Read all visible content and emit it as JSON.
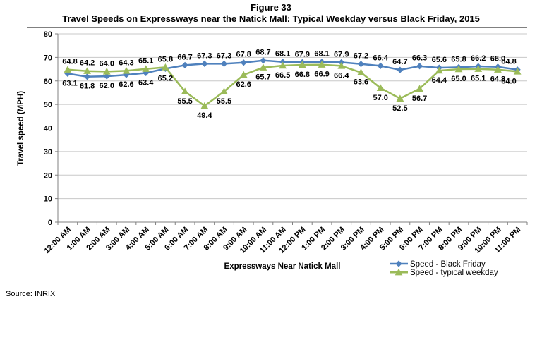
{
  "figure": {
    "title_line1": "Figure 33",
    "title_line2": "Travel Speeds on Expressways near the Natick Mall: Typical Weekday versus Black Friday, 2015",
    "source": "Source: INRIX"
  },
  "chart_data": {
    "type": "line",
    "title": "Travel Speeds on Expressways near the Natick Mall: Typical Weekday versus Black Friday, 2015",
    "xlabel": "Expressways Near Natick Mall",
    "ylabel": "Travel speed (MPH)",
    "ylim": [
      0,
      80
    ],
    "ytick_step": 10,
    "grid": true,
    "legend_position": "bottom-right",
    "data_labels": true,
    "label_decimals": 1,
    "categories": [
      "12:00 AM",
      "1:00 AM",
      "2:00 AM",
      "3:00 AM",
      "4:00 AM",
      "5:00 AM",
      "6:00 AM",
      "7:00 AM",
      "8:00 AM",
      "9:00 AM",
      "10:00 AM",
      "11:00 AM",
      "12:00 PM",
      "1:00 PM",
      "2:00 PM",
      "3:00 PM",
      "4:00 PM",
      "5:00 PM",
      "6:00 PM",
      "7:00 PM",
      "8:00 PM",
      "9:00 PM",
      "10:00 PM",
      "11:00 PM"
    ],
    "series": [
      {
        "name": "Speed - Black Friday",
        "color": "#4F81BD",
        "marker": "diamond",
        "values": [
          63.1,
          61.8,
          62.0,
          62.6,
          63.4,
          65.2,
          66.7,
          67.3,
          67.3,
          67.8,
          68.7,
          68.1,
          67.9,
          68.1,
          67.9,
          67.2,
          66.4,
          64.7,
          66.3,
          65.6,
          65.8,
          66.2,
          66.0,
          64.8
        ]
      },
      {
        "name": "Speed - typical weekday",
        "color": "#9BBB59",
        "marker": "triangle",
        "values": [
          64.8,
          64.2,
          64.0,
          64.3,
          65.1,
          65.8,
          55.5,
          49.4,
          55.5,
          62.6,
          65.7,
          66.5,
          66.8,
          66.9,
          66.4,
          63.6,
          57.0,
          52.5,
          56.7,
          64.4,
          65.0,
          65.1,
          64.8,
          64.0
        ]
      }
    ],
    "colors": {
      "gridline": "#C8C8C8",
      "axis": "#808080",
      "text": "#000000",
      "background": "#FFFFFF"
    }
  }
}
